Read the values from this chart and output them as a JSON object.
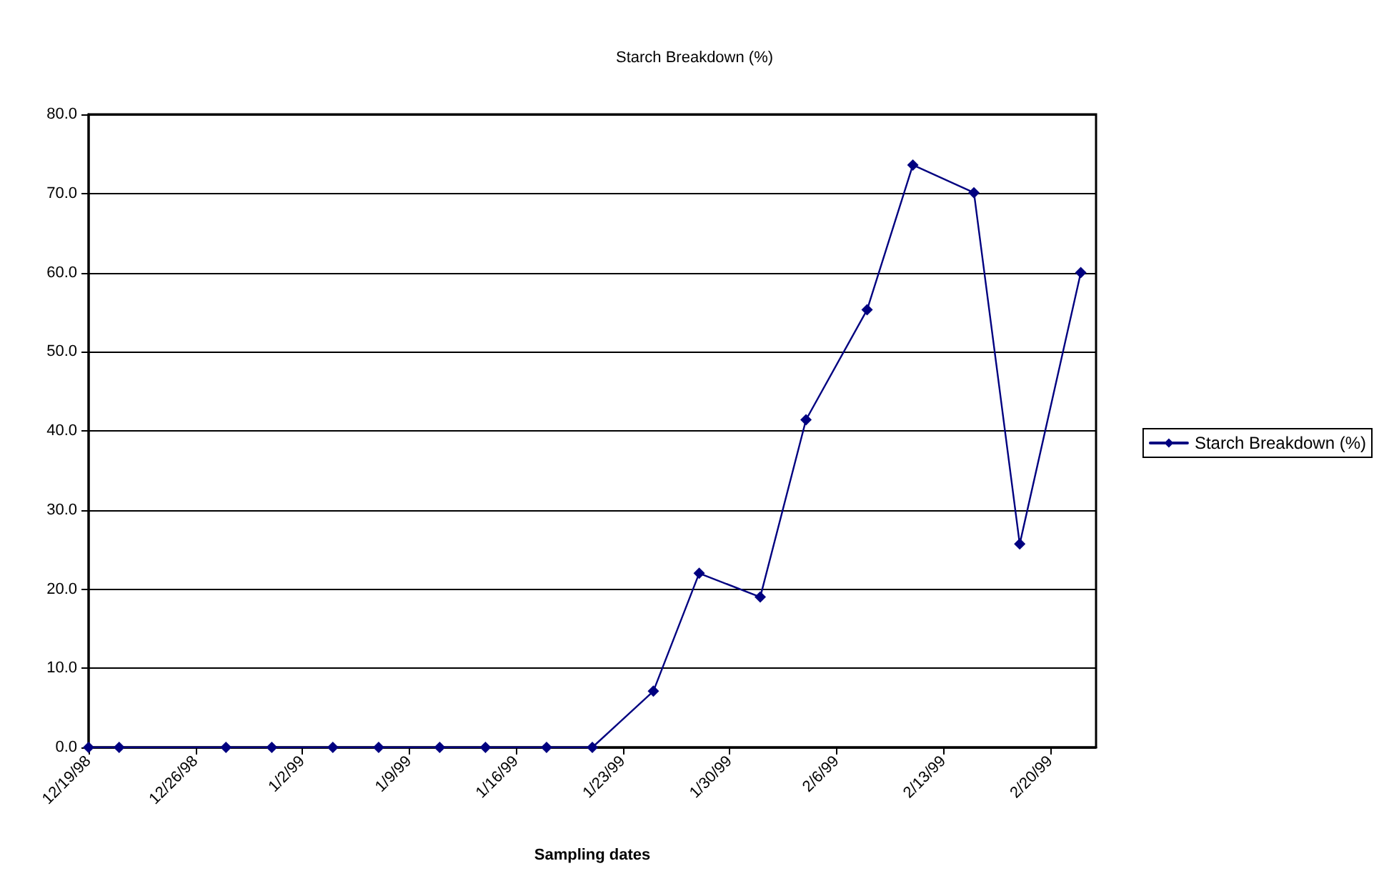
{
  "chart_data": {
    "type": "line",
    "title": "Starch Breakdown (%)",
    "xlabel": "Sampling dates",
    "x": [
      "1998-12-19",
      "1998-12-21",
      "1998-12-28",
      "1998-12-31",
      "1999-01-04",
      "1999-01-07",
      "1999-01-11",
      "1999-01-14",
      "1999-01-18",
      "1999-01-21",
      "1999-01-25",
      "1999-01-28",
      "1999-02-01",
      "1999-02-04",
      "1999-02-08",
      "1999-02-11",
      "1999-02-15",
      "1999-02-18",
      "1999-02-22"
    ],
    "series": [
      {
        "name": "Starch Breakdown (%)",
        "color": "#000080",
        "values": [
          0,
          0,
          0,
          0,
          0,
          0,
          0,
          0,
          0,
          0,
          7.1,
          22.0,
          19.0,
          41.4,
          55.3,
          73.6,
          70.1,
          25.7,
          60.0
        ]
      }
    ],
    "xlim": [
      "1998-12-19",
      "1999-02-23"
    ],
    "xticks": [
      {
        "value": "1998-12-19",
        "label": "12/19/98"
      },
      {
        "value": "1998-12-26",
        "label": "12/26/98"
      },
      {
        "value": "1999-01-02",
        "label": "1/2/99"
      },
      {
        "value": "1999-01-09",
        "label": "1/9/99"
      },
      {
        "value": "1999-01-16",
        "label": "1/16/99"
      },
      {
        "value": "1999-01-23",
        "label": "1/23/99"
      },
      {
        "value": "1999-01-30",
        "label": "1/30/99"
      },
      {
        "value": "1999-02-06",
        "label": "2/6/99"
      },
      {
        "value": "1999-02-13",
        "label": "2/13/99"
      },
      {
        "value": "1999-02-20",
        "label": "2/20/99"
      }
    ],
    "ylim": [
      0,
      80
    ],
    "yticks": [
      {
        "value": 0,
        "label": "0.0"
      },
      {
        "value": 10,
        "label": "10.0"
      },
      {
        "value": 20,
        "label": "20.0"
      },
      {
        "value": 30,
        "label": "30.0"
      },
      {
        "value": 40,
        "label": "40.0"
      },
      {
        "value": 50,
        "label": "50.0"
      },
      {
        "value": 60,
        "label": "60.0"
      },
      {
        "value": 70,
        "label": "70.0"
      },
      {
        "value": 80,
        "label": "80.0"
      }
    ],
    "grid": "y",
    "legend": "right",
    "marker": "diamond",
    "line_style": "solid"
  }
}
